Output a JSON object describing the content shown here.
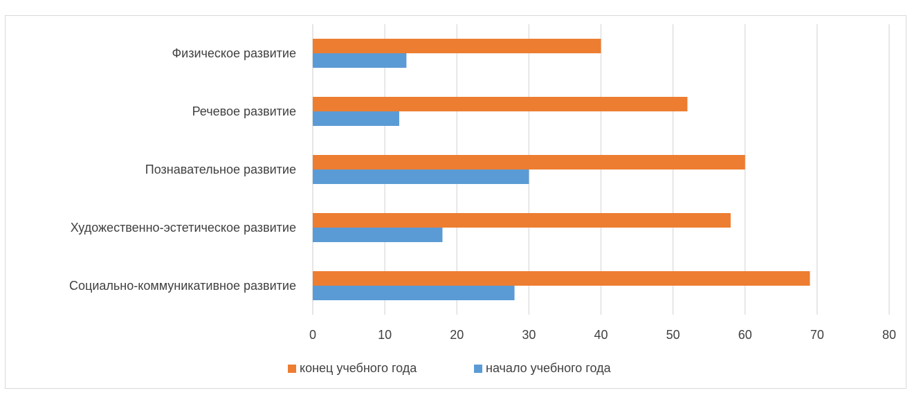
{
  "chart_data": {
    "type": "bar",
    "orientation": "horizontal",
    "title": "",
    "categories": [
      "Физическое развитие",
      "Речевое развитие",
      "Познавательное развитие",
      "Художественно-эстетическое развитие",
      "Социально-коммуникативное развитие"
    ],
    "series": [
      {
        "name": "конец учебного года",
        "color": "#ED7D31",
        "values": [
          40,
          52,
          60,
          58,
          69
        ]
      },
      {
        "name": "начало учебного года",
        "color": "#5B9BD5",
        "values": [
          13,
          12,
          30,
          18,
          28
        ]
      }
    ],
    "xlim": [
      0,
      80
    ],
    "xticks": [
      0,
      10,
      20,
      30,
      40,
      50,
      60,
      70,
      80
    ],
    "grid": "vertical",
    "legend": "bottom",
    "gridline_color": "#d9d9d9",
    "text_color": "#404040"
  }
}
